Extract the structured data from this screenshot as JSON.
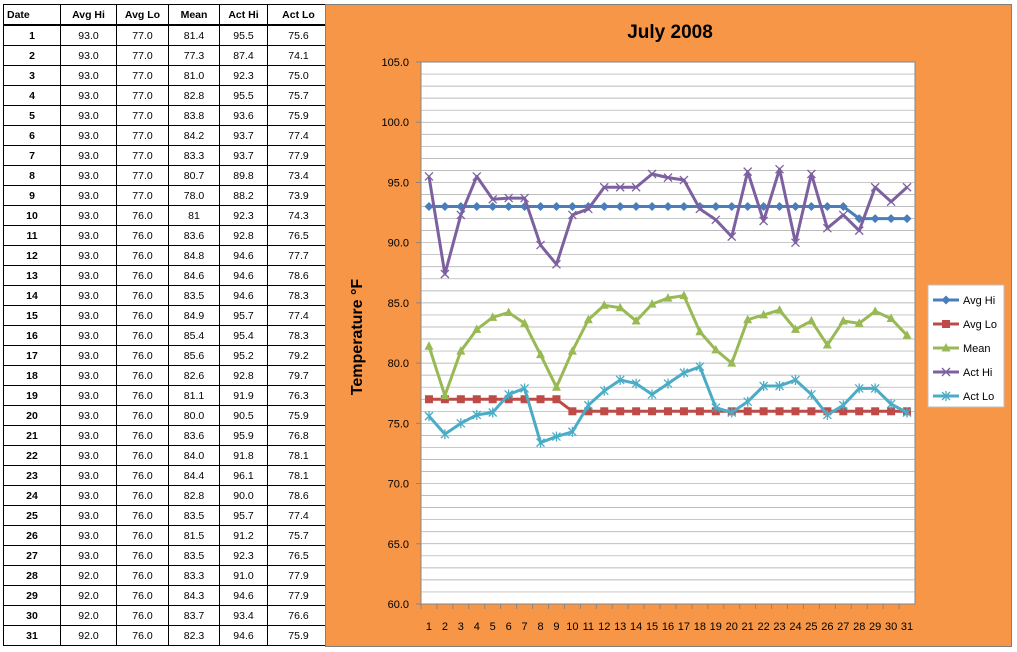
{
  "table": {
    "headers": [
      "Date",
      "Avg Hi",
      "Avg Lo",
      "Mean",
      "Act Hi",
      "Act Lo"
    ],
    "rows": [
      [
        "1",
        "93.0",
        "77.0",
        "81.4",
        "95.5",
        "75.6"
      ],
      [
        "2",
        "93.0",
        "77.0",
        "77.3",
        "87.4",
        "74.1"
      ],
      [
        "3",
        "93.0",
        "77.0",
        "81.0",
        "92.3",
        "75.0"
      ],
      [
        "4",
        "93.0",
        "77.0",
        "82.8",
        "95.5",
        "75.7"
      ],
      [
        "5",
        "93.0",
        "77.0",
        "83.8",
        "93.6",
        "75.9"
      ],
      [
        "6",
        "93.0",
        "77.0",
        "84.2",
        "93.7",
        "77.4"
      ],
      [
        "7",
        "93.0",
        "77.0",
        "83.3",
        "93.7",
        "77.9"
      ],
      [
        "8",
        "93.0",
        "77.0",
        "80.7",
        "89.8",
        "73.4"
      ],
      [
        "9",
        "93.0",
        "77.0",
        "78.0",
        "88.2",
        "73.9"
      ],
      [
        "10",
        "93.0",
        "76.0",
        "81",
        "92.3",
        "74.3"
      ],
      [
        "11",
        "93.0",
        "76.0",
        "83.6",
        "92.8",
        "76.5"
      ],
      [
        "12",
        "93.0",
        "76.0",
        "84.8",
        "94.6",
        "77.7"
      ],
      [
        "13",
        "93.0",
        "76.0",
        "84.6",
        "94.6",
        "78.6"
      ],
      [
        "14",
        "93.0",
        "76.0",
        "83.5",
        "94.6",
        "78.3"
      ],
      [
        "15",
        "93.0",
        "76.0",
        "84.9",
        "95.7",
        "77.4"
      ],
      [
        "16",
        "93.0",
        "76.0",
        "85.4",
        "95.4",
        "78.3"
      ],
      [
        "17",
        "93.0",
        "76.0",
        "85.6",
        "95.2",
        "79.2"
      ],
      [
        "18",
        "93.0",
        "76.0",
        "82.6",
        "92.8",
        "79.7"
      ],
      [
        "19",
        "93.0",
        "76.0",
        "81.1",
        "91.9",
        "76.3"
      ],
      [
        "20",
        "93.0",
        "76.0",
        "80.0",
        "90.5",
        "75.9"
      ],
      [
        "21",
        "93.0",
        "76.0",
        "83.6",
        "95.9",
        "76.8"
      ],
      [
        "22",
        "93.0",
        "76.0",
        "84.0",
        "91.8",
        "78.1"
      ],
      [
        "23",
        "93.0",
        "76.0",
        "84.4",
        "96.1",
        "78.1"
      ],
      [
        "24",
        "93.0",
        "76.0",
        "82.8",
        "90.0",
        "78.6"
      ],
      [
        "25",
        "93.0",
        "76.0",
        "83.5",
        "95.7",
        "77.4"
      ],
      [
        "26",
        "93.0",
        "76.0",
        "81.5",
        "91.2",
        "75.7"
      ],
      [
        "27",
        "93.0",
        "76.0",
        "83.5",
        "92.3",
        "76.5"
      ],
      [
        "28",
        "92.0",
        "76.0",
        "83.3",
        "91.0",
        "77.9"
      ],
      [
        "29",
        "92.0",
        "76.0",
        "84.3",
        "94.6",
        "77.9"
      ],
      [
        "30",
        "92.0",
        "76.0",
        "83.7",
        "93.4",
        "76.6"
      ],
      [
        "31",
        "92.0",
        "76.0",
        "82.3",
        "94.6",
        "75.9"
      ]
    ]
  },
  "chart_data": {
    "type": "line",
    "title": "July 2008",
    "xlabel": "",
    "ylabel": "Temperature °F",
    "ylim": [
      60,
      105
    ],
    "y_ticks": [
      "60.0",
      "65.0",
      "70.0",
      "75.0",
      "80.0",
      "85.0",
      "90.0",
      "95.0",
      "100.0",
      "105.0"
    ],
    "x_ticks": [
      "1",
      "2",
      "3",
      "4",
      "5",
      "6",
      "7",
      "8",
      "9",
      "10",
      "11",
      "12",
      "13",
      "14",
      "15",
      "16",
      "17",
      "18",
      "19",
      "20",
      "21",
      "22",
      "23",
      "24",
      "25",
      "26",
      "27",
      "28",
      "29",
      "30",
      "31"
    ],
    "grid": true,
    "legend_position": "right",
    "background_color": "#f79646",
    "series": [
      {
        "name": "Avg Hi",
        "color": "#4a7ebb",
        "marker": "diamond",
        "values": [
          93,
          93,
          93,
          93,
          93,
          93,
          93,
          93,
          93,
          93,
          93,
          93,
          93,
          93,
          93,
          93,
          93,
          93,
          93,
          93,
          93,
          93,
          93,
          93,
          93,
          93,
          93,
          92,
          92,
          92,
          92
        ]
      },
      {
        "name": "Avg Lo",
        "color": "#be4b48",
        "marker": "square",
        "values": [
          77,
          77,
          77,
          77,
          77,
          77,
          77,
          77,
          77,
          76,
          76,
          76,
          76,
          76,
          76,
          76,
          76,
          76,
          76,
          76,
          76,
          76,
          76,
          76,
          76,
          76,
          76,
          76,
          76,
          76,
          76
        ]
      },
      {
        "name": "Mean",
        "color": "#98b954",
        "marker": "triangle",
        "values": [
          81.4,
          77.3,
          81.0,
          82.8,
          83.8,
          84.2,
          83.3,
          80.7,
          78.0,
          81,
          83.6,
          84.8,
          84.6,
          83.5,
          84.9,
          85.4,
          85.6,
          82.6,
          81.1,
          80.0,
          83.6,
          84.0,
          84.4,
          82.8,
          83.5,
          81.5,
          83.5,
          83.3,
          84.3,
          83.7,
          82.3
        ]
      },
      {
        "name": "Act Hi",
        "color": "#7d60a0",
        "marker": "x",
        "values": [
          95.5,
          87.4,
          92.3,
          95.5,
          93.6,
          93.7,
          93.7,
          89.8,
          88.2,
          92.3,
          92.8,
          94.6,
          94.6,
          94.6,
          95.7,
          95.4,
          95.2,
          92.8,
          91.9,
          90.5,
          95.9,
          91.8,
          96.1,
          90.0,
          95.7,
          91.2,
          92.3,
          91.0,
          94.6,
          93.4,
          94.6
        ]
      },
      {
        "name": "Act Lo",
        "color": "#4bacc6",
        "marker": "star",
        "values": [
          75.6,
          74.1,
          75.0,
          75.7,
          75.9,
          77.4,
          77.9,
          73.4,
          73.9,
          74.3,
          76.5,
          77.7,
          78.6,
          78.3,
          77.4,
          78.3,
          79.2,
          79.7,
          76.3,
          75.9,
          76.8,
          78.1,
          78.1,
          78.6,
          77.4,
          75.7,
          76.5,
          77.9,
          77.9,
          76.6,
          75.9
        ]
      }
    ]
  }
}
